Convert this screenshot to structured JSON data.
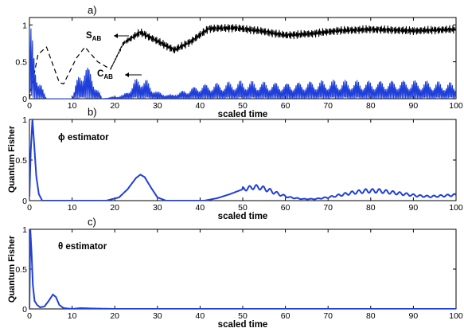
{
  "chart_data": [
    {
      "type": "line",
      "panel_label": "a)",
      "xlabel": "scaled time",
      "ylabel": "",
      "xlim": [
        0,
        100
      ],
      "ylim": [
        0,
        1.1
      ],
      "x_ticks": [
        0,
        10,
        20,
        30,
        40,
        50,
        60,
        70,
        80,
        90,
        100
      ],
      "y_ticks": [
        0,
        0.5,
        1
      ],
      "x_tick_labels": [
        "0",
        "10",
        "20",
        "30",
        "40",
        "50",
        "60",
        "70",
        "80",
        "90",
        "100"
      ],
      "y_tick_labels": [
        "0",
        "0.5",
        "1"
      ],
      "series": [
        {
          "label_main": "S",
          "label_sub": "AB",
          "color": "#000000",
          "style": "dashed-then-oscillating",
          "envelope": [
            [
              0,
              0.0
            ],
            [
              2,
              0.6
            ],
            [
              4,
              0.7
            ],
            [
              7,
              0.22
            ],
            [
              8,
              0.2
            ],
            [
              11,
              0.55
            ],
            [
              13,
              0.7
            ],
            [
              16,
              0.5
            ],
            [
              19,
              0.4
            ],
            [
              22,
              0.75
            ],
            [
              26,
              0.9
            ],
            [
              30,
              0.78
            ],
            [
              34,
              0.66
            ],
            [
              38,
              0.78
            ],
            [
              42,
              0.95
            ],
            [
              48,
              0.96
            ],
            [
              54,
              0.92
            ],
            [
              60,
              0.86
            ],
            [
              66,
              0.88
            ],
            [
              72,
              0.92
            ],
            [
              80,
              0.94
            ],
            [
              90,
              0.92
            ],
            [
              100,
              0.94
            ]
          ],
          "oscillation_amplitude": 0.06
        },
        {
          "label_main": "C",
          "label_sub": "AB",
          "color": "#1f3fd9",
          "style": "fast-oscillation",
          "envelope": [
            [
              0,
              1.0
            ],
            [
              1,
              0.9
            ],
            [
              2,
              0.3
            ],
            [
              4,
              0.0
            ],
            [
              10,
              0.0
            ],
            [
              11,
              0.25
            ],
            [
              13,
              0.55
            ],
            [
              15,
              0.3
            ],
            [
              17,
              0.0
            ],
            [
              22,
              0.05
            ],
            [
              26,
              0.35
            ],
            [
              30,
              0.1
            ],
            [
              33,
              0.05
            ],
            [
              40,
              0.2
            ],
            [
              50,
              0.25
            ],
            [
              60,
              0.22
            ],
            [
              70,
              0.26
            ],
            [
              80,
              0.25
            ],
            [
              90,
              0.26
            ],
            [
              100,
              0.22
            ]
          ]
        }
      ]
    },
    {
      "type": "line",
      "panel_label": "b)",
      "xlabel": "scaled time",
      "ylabel": "Quantum Fisher",
      "annotation": "ϕ  estimator",
      "xlim": [
        0,
        100
      ],
      "ylim": [
        0,
        1
      ],
      "x_ticks": [
        0,
        10,
        20,
        30,
        40,
        50,
        60,
        70,
        80,
        90,
        100
      ],
      "y_ticks": [
        0,
        0.5,
        1
      ],
      "x_tick_labels": [
        "0",
        "10",
        "20",
        "30",
        "40",
        "50",
        "60",
        "70",
        "80",
        "90",
        "100"
      ],
      "y_tick_labels": [
        "0",
        "0.5",
        "1"
      ],
      "series": [
        {
          "color": "#1f3fd9",
          "points": [
            [
              0,
              0.05
            ],
            [
              0.3,
              0.6
            ],
            [
              0.7,
              1.0
            ],
            [
              1.1,
              0.7
            ],
            [
              1.6,
              0.3
            ],
            [
              2.2,
              0.08
            ],
            [
              3,
              0.0
            ],
            [
              18,
              0.0
            ],
            [
              21,
              0.04
            ],
            [
              23,
              0.14
            ],
            [
              25,
              0.28
            ],
            [
              26,
              0.32
            ],
            [
              27,
              0.29
            ],
            [
              28.5,
              0.16
            ],
            [
              30,
              0.04
            ],
            [
              32,
              0.0
            ],
            [
              41,
              0.0
            ],
            [
              44,
              0.03
            ],
            [
              47,
              0.08
            ],
            [
              50,
              0.14
            ],
            [
              53,
              0.17
            ],
            [
              55,
              0.15
            ],
            [
              57,
              0.11
            ],
            [
              59,
              0.07
            ],
            [
              61,
              0.04
            ],
            [
              64,
              0.02
            ],
            [
              67,
              0.02
            ],
            [
              70,
              0.04
            ],
            [
              73,
              0.07
            ],
            [
              76,
              0.1
            ],
            [
              79,
              0.12
            ],
            [
              82,
              0.12
            ],
            [
              85,
              0.1
            ],
            [
              88,
              0.08
            ],
            [
              91,
              0.06
            ],
            [
              94,
              0.05
            ],
            [
              97,
              0.06
            ],
            [
              100,
              0.07
            ]
          ],
          "ripple": {
            "from": 50,
            "to": 100,
            "period": 1.6,
            "amplitude": 0.025
          }
        }
      ]
    },
    {
      "type": "line",
      "panel_label": "c)",
      "xlabel": "scaled time",
      "ylabel": "Quantum Fisher",
      "annotation": "θ  estimator",
      "xlim": [
        0,
        100
      ],
      "ylim": [
        0,
        1
      ],
      "x_ticks": [
        0,
        10,
        20,
        30,
        40,
        50,
        60,
        70,
        80,
        90,
        100
      ],
      "y_ticks": [
        0,
        0.5,
        1
      ],
      "x_tick_labels": [
        "0",
        "10",
        "20",
        "30",
        "40",
        "50",
        "60",
        "70",
        "80",
        "90",
        "100"
      ],
      "y_tick_labels": [
        "0",
        "0.5",
        "1"
      ],
      "series": [
        {
          "color": "#1f3fd9",
          "points": [
            [
              0,
              0.0
            ],
            [
              0.2,
              1.0
            ],
            [
              0.5,
              0.7
            ],
            [
              0.8,
              0.3
            ],
            [
              1.2,
              0.1
            ],
            [
              1.8,
              0.05
            ],
            [
              2.5,
              0.02
            ],
            [
              3.5,
              0.03
            ],
            [
              4.5,
              0.1
            ],
            [
              5.5,
              0.18
            ],
            [
              6.2,
              0.15
            ],
            [
              7,
              0.05
            ],
            [
              8,
              0.01
            ],
            [
              10,
              0.0
            ],
            [
              12,
              0.01
            ],
            [
              15,
              0.005
            ],
            [
              20,
              0.0
            ],
            [
              100,
              0.0
            ]
          ]
        }
      ]
    }
  ]
}
